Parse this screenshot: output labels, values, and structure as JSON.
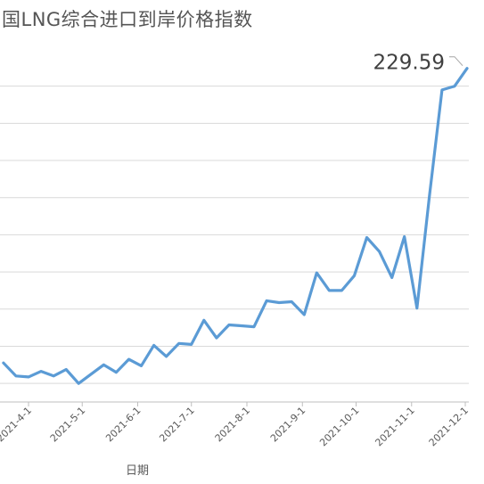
{
  "chart_data": {
    "type": "line",
    "title": "国LNG综合进口到岸价格指数",
    "xlabel": "日期",
    "ylabel": "",
    "x_tick_labels": [
      "2021-4-1",
      "2021-5-1",
      "2021-6-1",
      "2021-7-1",
      "2021-8-1",
      "2021-9-1",
      "2021-10-1",
      "2021-11-1",
      "2021-12-1"
    ],
    "ylim": [
      50,
      240
    ],
    "grid": true,
    "last_point_label": "229.59",
    "series": [
      {
        "color": "#5b9bd5",
        "points": [
          {
            "x": "2021-3-18",
            "y": 71
          },
          {
            "x": "2021-3-25",
            "y": 64
          },
          {
            "x": "2021-4-1",
            "y": 63.5
          },
          {
            "x": "2021-4-8",
            "y": 66.5
          },
          {
            "x": "2021-4-15",
            "y": 64
          },
          {
            "x": "2021-4-22",
            "y": 67.5
          },
          {
            "x": "2021-4-29",
            "y": 60
          },
          {
            "x": "2021-5-6",
            "y": 65
          },
          {
            "x": "2021-5-13",
            "y": 70
          },
          {
            "x": "2021-5-20",
            "y": 66
          },
          {
            "x": "2021-5-27",
            "y": 73
          },
          {
            "x": "2021-6-3",
            "y": 69.5
          },
          {
            "x": "2021-6-10",
            "y": 80.5
          },
          {
            "x": "2021-6-17",
            "y": 74.5
          },
          {
            "x": "2021-6-24",
            "y": 81.5
          },
          {
            "x": "2021-7-1",
            "y": 81
          },
          {
            "x": "2021-7-8",
            "y": 94
          },
          {
            "x": "2021-7-15",
            "y": 84.5
          },
          {
            "x": "2021-7-22",
            "y": 91.5
          },
          {
            "x": "2021-7-29",
            "y": 91
          },
          {
            "x": "2021-8-5",
            "y": 90.5
          },
          {
            "x": "2021-8-12",
            "y": 104.5
          },
          {
            "x": "2021-8-19",
            "y": 103.5
          },
          {
            "x": "2021-8-26",
            "y": 104
          },
          {
            "x": "2021-9-2",
            "y": 97
          },
          {
            "x": "2021-9-9",
            "y": 119.5
          },
          {
            "x": "2021-9-16",
            "y": 110
          },
          {
            "x": "2021-9-23",
            "y": 110
          },
          {
            "x": "2021-9-30",
            "y": 118
          },
          {
            "x": "2021-10-7",
            "y": 138.5
          },
          {
            "x": "2021-10-14",
            "y": 131
          },
          {
            "x": "2021-10-21",
            "y": 117
          },
          {
            "x": "2021-10-28",
            "y": 139
          },
          {
            "x": "2021-11-4",
            "y": 100.5
          },
          {
            "x": "2021-11-11",
            "y": 161
          },
          {
            "x": "2021-11-18",
            "y": 218
          },
          {
            "x": "2021-11-25",
            "y": 220
          },
          {
            "x": "2021-12-2",
            "y": 229.59
          }
        ]
      }
    ]
  }
}
